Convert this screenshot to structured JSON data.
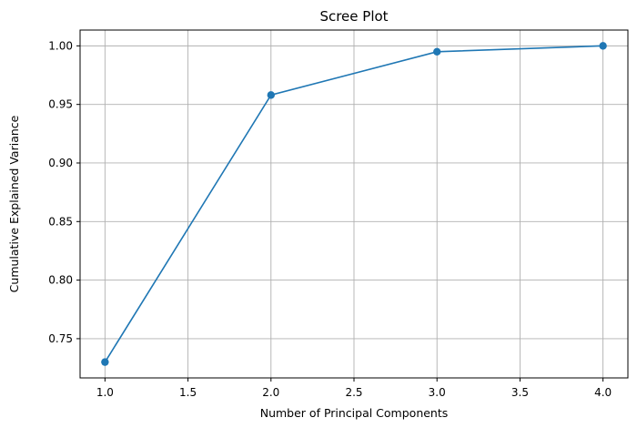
{
  "chart_data": {
    "type": "line",
    "title": "Scree Plot",
    "xlabel": "Number of Principal Components",
    "ylabel": "Cumulative Explained Variance",
    "x": [
      1,
      2,
      3,
      4
    ],
    "series": [
      {
        "values": [
          0.73,
          0.958,
          0.995,
          1.0
        ],
        "color": "#1f77b4",
        "marker": "circle"
      }
    ],
    "xlim": [
      0.85,
      4.15
    ],
    "ylim": [
      0.7165,
      1.0135
    ],
    "xticks": [
      1.0,
      1.5,
      2.0,
      2.5,
      3.0,
      3.5,
      4.0
    ],
    "xtick_labels": [
      "1.0",
      "1.5",
      "2.0",
      "2.5",
      "3.0",
      "3.5",
      "4.0"
    ],
    "yticks": [
      0.75,
      0.8,
      0.85,
      0.9,
      0.95,
      1.0
    ],
    "ytick_labels": [
      "0.75",
      "0.80",
      "0.85",
      "0.90",
      "0.95",
      "1.00"
    ],
    "grid": true
  }
}
